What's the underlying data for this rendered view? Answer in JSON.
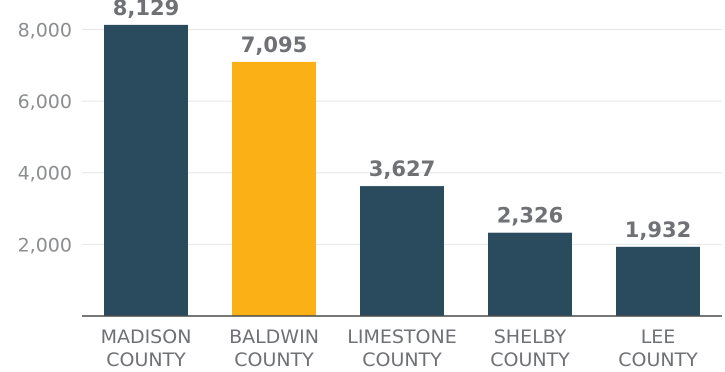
{
  "chart_data": {
    "type": "bar",
    "categories": [
      [
        "MADISON",
        "COUNTY"
      ],
      [
        "BALDWIN",
        "COUNTY"
      ],
      [
        "LIMESTONE",
        "COUNTY"
      ],
      [
        "SHELBY",
        "COUNTY"
      ],
      [
        "LEE",
        "COUNTY"
      ]
    ],
    "values": [
      8129,
      7095,
      3627,
      2326,
      1932
    ],
    "value_labels": [
      "8,129",
      "7,095",
      "3,627",
      "2,326",
      "1,932"
    ],
    "yticks": [
      2000,
      4000,
      6000,
      8000
    ],
    "ytick_labels": [
      "2,000",
      "4,000",
      "6,000",
      "8,000"
    ],
    "ylim": [
      0,
      8600
    ],
    "grid": true,
    "colors": {
      "default_bar": "#2a4a5e",
      "highlight_bar": "#fbb016",
      "gridline": "#e4e6e8",
      "axis": "#4a4a4a"
    },
    "highlight_index": 1
  }
}
